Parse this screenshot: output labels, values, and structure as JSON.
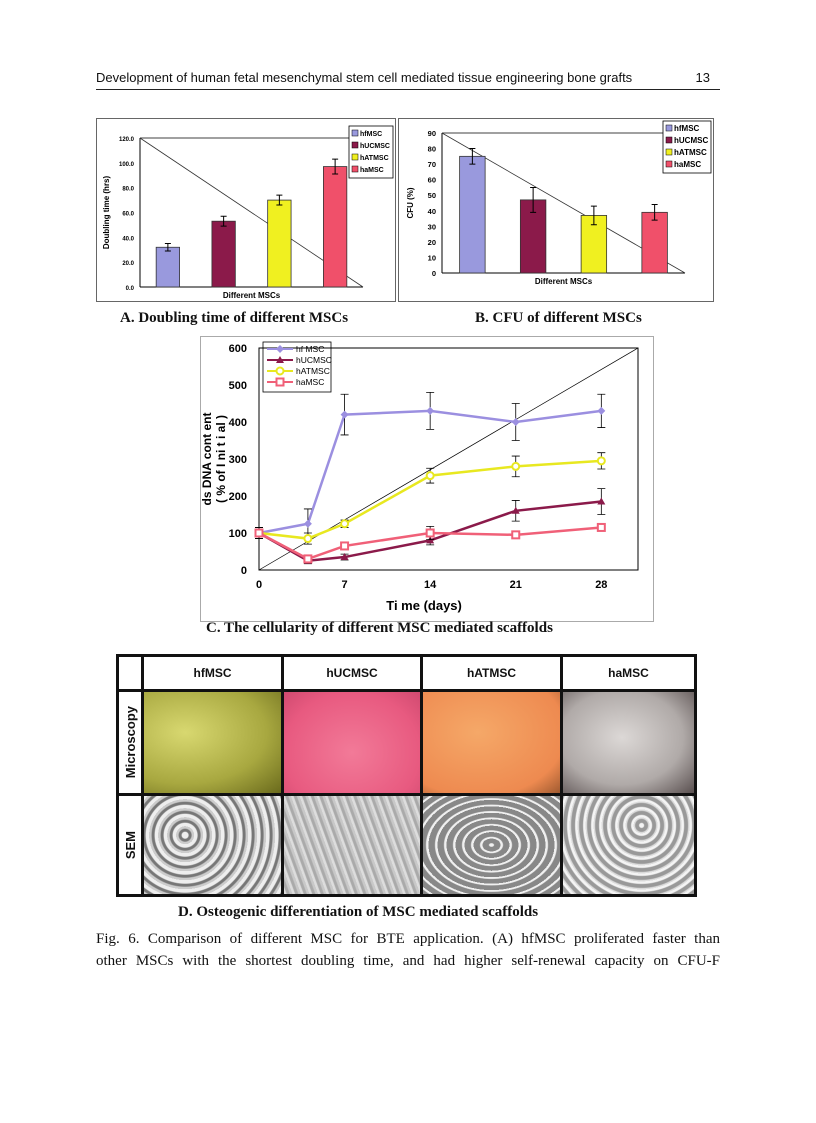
{
  "header": {
    "title": "Development of human fetal mesenchymal stem cell mediated tissue engineering bone grafts",
    "page_number": "13"
  },
  "chart_data": [
    {
      "type": "bar",
      "id": "A",
      "categories": [
        "hfMSC",
        "hUCMSC",
        "hATMSC",
        "haMSC"
      ],
      "values": [
        32,
        53,
        70,
        97
      ],
      "errors": [
        3,
        4,
        4,
        6
      ],
      "xlabel": "Different MSCs",
      "ylabel": "Doubling time (hrs)",
      "ylim": [
        0,
        120
      ],
      "yticks": [
        "0.0",
        "20.0",
        "40.0",
        "60.0",
        "80.0",
        "100.0",
        "120.0"
      ],
      "legend": [
        "hfMSC",
        "hUCMSC",
        "hATMSC",
        "haMSC"
      ],
      "legend_position": "top-right",
      "colors": [
        "#9999dd",
        "#8b1a4a",
        "#f0f020",
        "#f0506a"
      ],
      "grid": false
    },
    {
      "type": "bar",
      "id": "B",
      "categories": [
        "hfMSC",
        "hUCMSC",
        "hATMSC",
        "haMSC"
      ],
      "values": [
        75,
        47,
        37,
        39
      ],
      "errors": [
        5,
        8,
        6,
        5
      ],
      "xlabel": "Different MSCs",
      "ylabel": "CFU (%)",
      "ylim": [
        0,
        90
      ],
      "yticks": [
        "0",
        "10",
        "20",
        "30",
        "40",
        "50",
        "60",
        "70",
        "80",
        "90"
      ],
      "legend": [
        "hfMSC",
        "hUCMSC",
        "hATMSC",
        "haMSC"
      ],
      "legend_position": "top-right",
      "colors": [
        "#9999dd",
        "#8b1a4a",
        "#f0f020",
        "#f0506a"
      ],
      "grid": false
    },
    {
      "type": "line",
      "id": "C",
      "x": [
        0,
        4,
        7,
        14,
        21,
        28
      ],
      "xticks": [
        "0",
        "7",
        "14",
        "21",
        "28"
      ],
      "xtick_values": [
        0,
        7,
        14,
        21,
        28
      ],
      "xlim": [
        0,
        31
      ],
      "ylim": [
        0,
        600
      ],
      "yticks": [
        "0",
        "100",
        "200",
        "300",
        "400",
        "500",
        "600"
      ],
      "xlabel": "Ti me (days)",
      "ylabel": [
        "ds DNA cont ent",
        "( % of  I ni t i al )"
      ],
      "legend_position": "top-left",
      "grid": false,
      "series": [
        {
          "name": "hf MSC",
          "color": "#9b8fe0",
          "marker": "diamond",
          "values": [
            100,
            125,
            420,
            430,
            400,
            430
          ],
          "errors": [
            15,
            40,
            55,
            50,
            50,
            45
          ]
        },
        {
          "name": "hUCMSC",
          "color": "#8b1a4a",
          "marker": "triangle",
          "values": [
            100,
            25,
            35,
            80,
            160,
            185
          ],
          "errors": [
            15,
            8,
            8,
            12,
            28,
            35
          ]
        },
        {
          "name": "hATMSC",
          "color": "#e8e820",
          "marker": "circle",
          "values": [
            100,
            85,
            125,
            255,
            280,
            295
          ],
          "errors": [
            15,
            15,
            10,
            20,
            28,
            22
          ]
        },
        {
          "name": "haMSC",
          "color": "#f06078",
          "marker": "square",
          "values": [
            100,
            30,
            65,
            100,
            95,
            115
          ],
          "errors": [
            15,
            8,
            8,
            18,
            10,
            10
          ]
        }
      ]
    }
  ],
  "captions": {
    "a": "A.  Doubling time of different MSCs",
    "b": "B. CFU of different MSCs",
    "c": "C.  The cellularity of different MSC mediated scaffolds",
    "d": "D.  Osteogenic differentiation of MSC mediated scaffolds"
  },
  "panel_d": {
    "columns": [
      "hfMSC",
      "hUCMSC",
      "hATMSC",
      "haMSC"
    ],
    "rows": [
      "Microscopy",
      "SEM"
    ]
  },
  "figure_text": {
    "line1": "Fig. 6. Comparison of different MSC for BTE application. (A) hfMSC proliferated faster than",
    "line2": "other MSCs with the shortest doubling time, and had higher self-renewal capacity on CFU-F"
  }
}
